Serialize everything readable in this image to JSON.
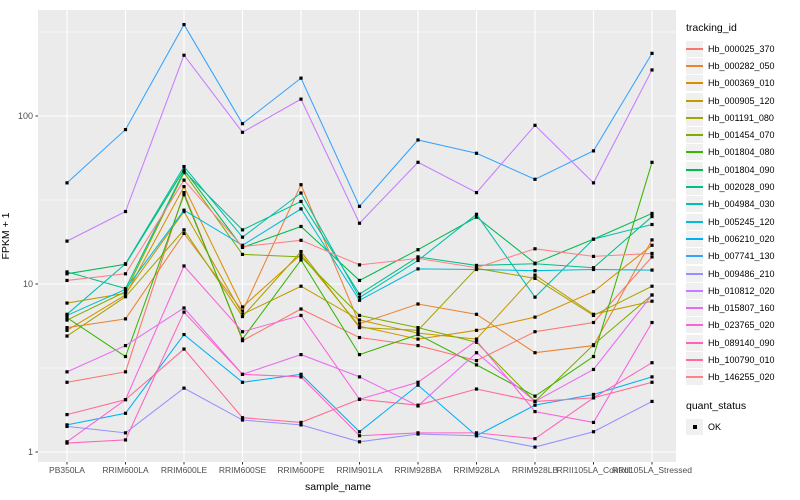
{
  "chart_data": {
    "type": "line",
    "title": "",
    "xlabel": "sample_name",
    "ylabel": "FPKM + 1",
    "yscale": "log10",
    "ylim": [
      0.87,
      480
    ],
    "yticks": [
      1,
      10,
      100
    ],
    "grid": "on",
    "legend_position": "right",
    "panel_bg": "#EBEBEB",
    "grid_color": "#FFFFFF",
    "point_color": "#000000",
    "categories": [
      "PB350LA",
      "RRIM600LA",
      "RRIM600LE",
      "RRIM600SE",
      "RRIM600PE",
      "RRIM901LA",
      "RRIM928BA",
      "RRIM928LA",
      "RRIM928LB",
      "RRII105LA_Control",
      "RRII105LA_Stressed"
    ],
    "series": [
      {
        "name": "Hb_000025_370",
        "color": "#F8766D",
        "values": [
          2.6,
          3.0,
          35,
          4.6,
          7.1,
          4.8,
          4.3,
          3.5,
          5.2,
          5.9,
          14.5
        ]
      },
      {
        "name": "Hb_000282_050",
        "color": "#EA8331",
        "values": [
          5.5,
          6.2,
          20,
          6.9,
          39,
          5.8,
          7.6,
          6.6,
          3.9,
          4.3,
          18.3
        ]
      },
      {
        "name": "Hb_000369_010",
        "color": "#D89000",
        "values": [
          5.3,
          8.6,
          38,
          7.3,
          15,
          5.6,
          4.7,
          5.3,
          6.35,
          9.0,
          17
        ]
      },
      {
        "name": "Hb_000905_120",
        "color": "#C09B00",
        "values": [
          7.7,
          8.8,
          27,
          6.6,
          9.7,
          6.1,
          5.1,
          4.7,
          11.3,
          6.6,
          7.9
        ]
      },
      {
        "name": "Hb_001191_080",
        "color": "#A3A500",
        "values": [
          4.9,
          8.4,
          21,
          6.4,
          15.6,
          5.5,
          5.3,
          12.4,
          10.8,
          6.5,
          9.7
        ]
      },
      {
        "name": "Hb_001454_070",
        "color": "#7CAE00",
        "values": [
          6.1,
          9.0,
          46,
          15,
          14.5,
          6.5,
          5.5,
          4.5,
          2.0,
          4.35,
          8.6
        ]
      },
      {
        "name": "Hb_001804_080",
        "color": "#39B600",
        "values": [
          6.3,
          3.7,
          34,
          4.7,
          13.9,
          3.8,
          5.0,
          3.3,
          2.15,
          3.7,
          53
        ]
      },
      {
        "name": "Hb_001804_090",
        "color": "#00BB4E",
        "values": [
          11.5,
          13.1,
          48,
          16.5,
          22,
          10.5,
          16,
          25,
          13.3,
          18.5,
          26.3
        ]
      },
      {
        "name": "Hb_002028_090",
        "color": "#00C087",
        "values": [
          11.8,
          9.4,
          47,
          21,
          31,
          8.7,
          14.5,
          12.9,
          13.2,
          12.5,
          25.2
        ]
      },
      {
        "name": "Hb_004984_030",
        "color": "#00C0AF",
        "values": [
          6.6,
          13.2,
          50,
          19,
          34.8,
          8.3,
          13.8,
          26,
          8.35,
          18.5,
          22.6
        ]
      },
      {
        "name": "Hb_005245_120",
        "color": "#00BCD8",
        "values": [
          6.5,
          9.3,
          27.5,
          17,
          28,
          8.0,
          12.3,
          12.2,
          12.0,
          12.2,
          12.1
        ]
      },
      {
        "name": "Hb_006210_020",
        "color": "#00B0F6",
        "values": [
          1.45,
          1.7,
          5.0,
          2.6,
          2.9,
          1.32,
          2.5,
          1.25,
          1.9,
          2.2,
          2.8
        ]
      },
      {
        "name": "Hb_007741_130",
        "color": "#35A2FF",
        "values": [
          40,
          83,
          350,
          90,
          168,
          29,
          72,
          60,
          42,
          62,
          236
        ]
      },
      {
        "name": "Hb_009486_210",
        "color": "#9590FF",
        "values": [
          1.42,
          1.3,
          2.4,
          1.55,
          1.45,
          1.15,
          1.28,
          1.25,
          1.07,
          1.32,
          2.0
        ]
      },
      {
        "name": "Hb_010812_020",
        "color": "#C77CFF",
        "values": [
          18,
          27,
          230,
          80,
          126,
          23,
          53,
          35,
          88,
          40,
          188
        ]
      },
      {
        "name": "Hb_015807_160",
        "color": "#E76BF3",
        "values": [
          3.0,
          4.3,
          7.2,
          2.9,
          3.8,
          2.8,
          1.88,
          3.9,
          2.0,
          3.1,
          8.6
        ]
      },
      {
        "name": "Hb_023765_020",
        "color": "#FA62DB",
        "values": [
          1.15,
          2.05,
          12.8,
          5.2,
          6.5,
          2.06,
          2.6,
          4.6,
          1.74,
          1.5,
          5.9
        ]
      },
      {
        "name": "Hb_089140_090",
        "color": "#FF62BC",
        "values": [
          1.13,
          1.18,
          6.8,
          2.9,
          2.8,
          1.25,
          1.3,
          1.3,
          1.2,
          2.1,
          3.4
        ]
      },
      {
        "name": "Hb_100790_010",
        "color": "#FF6A98",
        "values": [
          1.67,
          2.05,
          4.1,
          1.6,
          1.5,
          2.06,
          1.9,
          2.37,
          2.0,
          2.1,
          2.6
        ]
      },
      {
        "name": "Hb_146255_020",
        "color": "#FE8185",
        "values": [
          10.5,
          11.5,
          41.5,
          16.7,
          18.2,
          13,
          14.2,
          12.5,
          16.2,
          14.6,
          15.2
        ]
      }
    ],
    "legend": {
      "color_title": "tracking_id",
      "shape_title": "quant_status",
      "shape_items": [
        {
          "label": "OK"
        }
      ]
    }
  }
}
